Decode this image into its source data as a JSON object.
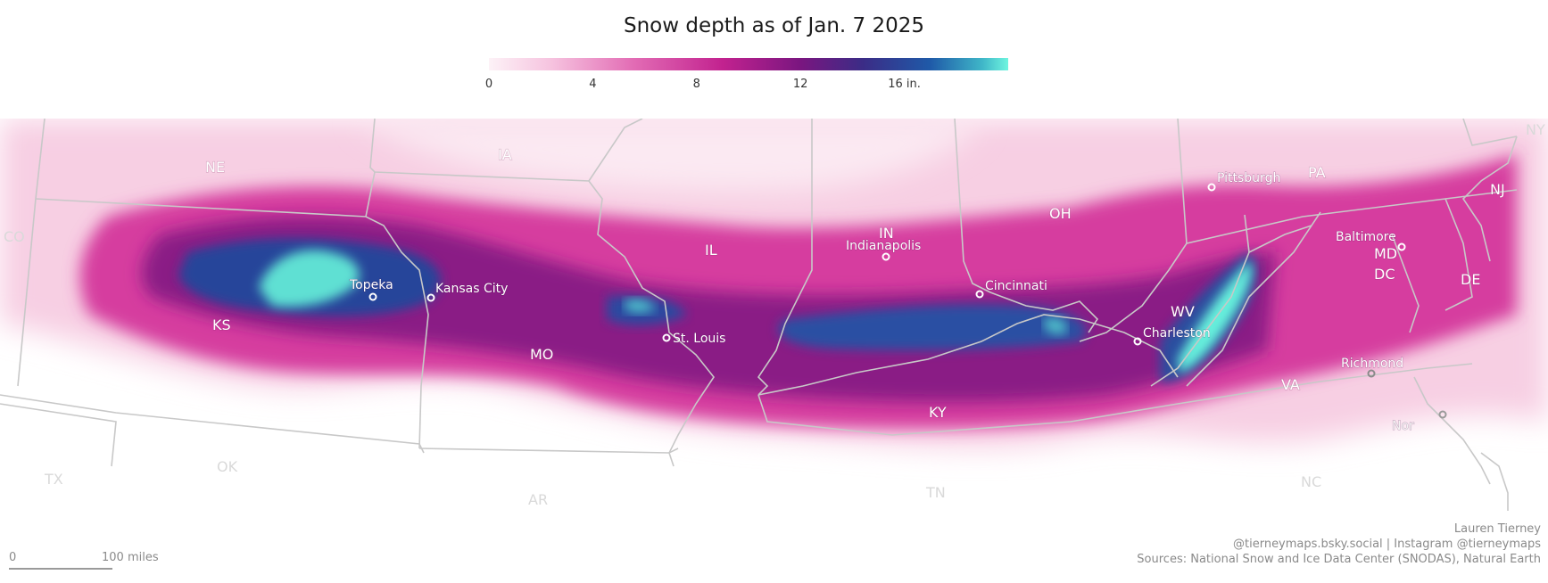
{
  "title": "Snow depth as of Jan. 7 2025",
  "legend": {
    "ticks": [
      {
        "label": "0",
        "value": 0
      },
      {
        "label": "4",
        "value": 4
      },
      {
        "label": "8",
        "value": 8
      },
      {
        "label": "12",
        "value": 12
      },
      {
        "label": "16 in.",
        "value": 16
      }
    ],
    "max_value": 20,
    "colors": [
      "#fdf2f7",
      "#e26bb4",
      "#c2228f",
      "#7a1680",
      "#3b2c86",
      "#1f5aa8",
      "#6ff5df"
    ]
  },
  "states": [
    {
      "label": "NE"
    },
    {
      "label": "IA"
    },
    {
      "label": "CO"
    },
    {
      "label": "KS"
    },
    {
      "label": "MO"
    },
    {
      "label": "IL"
    },
    {
      "label": "IN"
    },
    {
      "label": "OH"
    },
    {
      "label": "PA"
    },
    {
      "label": "NJ"
    },
    {
      "label": "NY"
    },
    {
      "label": "MD"
    },
    {
      "label": "DC"
    },
    {
      "label": "DE"
    },
    {
      "label": "WV"
    },
    {
      "label": "VA"
    },
    {
      "label": "KY"
    },
    {
      "label": "TN"
    },
    {
      "label": "NC"
    },
    {
      "label": "AR"
    },
    {
      "label": "OK"
    },
    {
      "label": "TX"
    }
  ],
  "cities": [
    {
      "label": "Topeka"
    },
    {
      "label": "Kansas City"
    },
    {
      "label": "St. Louis"
    },
    {
      "label": "Indianapolis"
    },
    {
      "label": "Cincinnati"
    },
    {
      "label": "Pittsburgh"
    },
    {
      "label": "Charleston"
    },
    {
      "label": "Baltimore"
    },
    {
      "label": "Richmond"
    },
    {
      "label": "Nor"
    }
  ],
  "scale_bar": {
    "start": "0",
    "end": "100 miles"
  },
  "credits": {
    "author": "Lauren Tierney",
    "social": "@tierneymaps.bsky.social | Instagram @tierneymaps",
    "sources": "Sources: National Snow and Ice Data Center (SNODAS), Natural Earth"
  }
}
